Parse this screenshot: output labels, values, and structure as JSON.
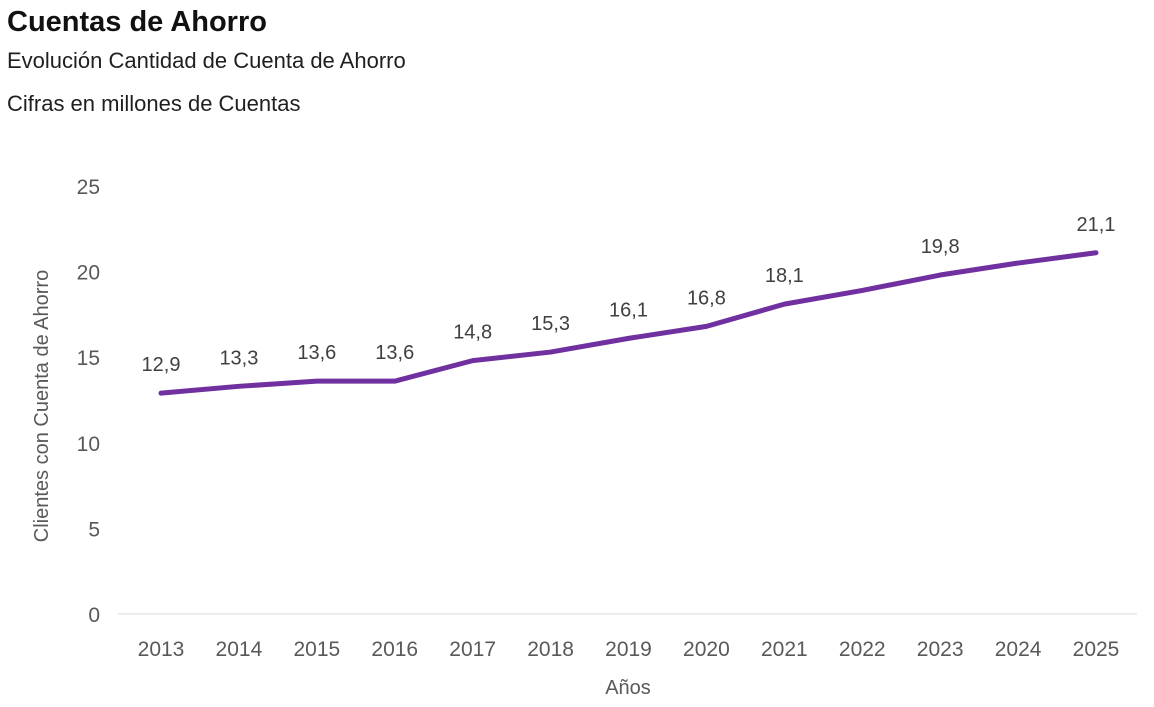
{
  "header": {
    "title": "Cuentas de Ahorro",
    "subtitle1": "Evolución Cantidad de Cuenta de Ahorro",
    "subtitle2": "Cifras en millones de Cuentas"
  },
  "chart_data": {
    "type": "line",
    "title": "Cuentas de Ahorro",
    "subtitle": "Evolución Cantidad de Cuenta de Ahorro — Cifras en millones de Cuentas",
    "categories": [
      2013,
      2014,
      2015,
      2016,
      2017,
      2018,
      2019,
      2020,
      2021,
      2022,
      2023,
      2024,
      2025
    ],
    "values": [
      12.9,
      13.3,
      13.6,
      13.6,
      14.8,
      15.3,
      16.1,
      16.8,
      18.1,
      18.9,
      19.8,
      20.5,
      21.1
    ],
    "point_labels": [
      "12,9",
      "13,3",
      "13,6",
      "13,6",
      "14,8",
      "15,3",
      "16,1",
      "16,8",
      "18,1",
      "",
      "19,8",
      "",
      "21,1"
    ],
    "xlabel": "Años",
    "ylabel": "Clientes con Cuenta de Ahorro",
    "ylim": [
      0,
      25
    ],
    "yticks": [
      0,
      5,
      10,
      15,
      20,
      25
    ],
    "grid": false,
    "legend": "none",
    "line_color": "#7030A0",
    "label_color": "#404040",
    "tick_color": "#595959",
    "axis_color": "#d9d9d9"
  }
}
